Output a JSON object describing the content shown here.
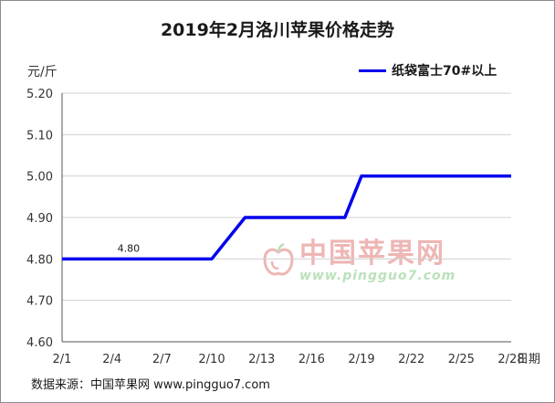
{
  "title": "2019年2月洛川苹果价格走势",
  "source": "数据来源：中国苹果网 www.pingguo7.com",
  "watermark": {
    "brand": "中国苹果网",
    "url": "www.pingguo7.com"
  },
  "colors": {
    "line": "#0000ee",
    "grid": "#d0d0d0",
    "axis": "#555555",
    "watermark_red": "#d9534f",
    "watermark_green": "#5cb85c"
  },
  "chart_data": {
    "type": "line",
    "title": "2019年2月洛川苹果价格走势",
    "ylabel": "元/斤",
    "xlabel": "日期",
    "ylim": [
      4.6,
      5.2
    ],
    "yticks": [
      "4.60",
      "4.70",
      "4.80",
      "4.90",
      "5.00",
      "5.10",
      "5.20"
    ],
    "xticks": [
      "2/1",
      "2/4",
      "2/7",
      "2/10",
      "2/13",
      "2/16",
      "2/19",
      "2/22",
      "2/25",
      "2/28"
    ],
    "grid": true,
    "legend_position": "top-right",
    "series": [
      {
        "name": "纸袋富士70#以上",
        "x": [
          1,
          10,
          12,
          18,
          19,
          28
        ],
        "values": [
          4.8,
          4.8,
          4.9,
          4.9,
          5.0,
          5.0
        ]
      }
    ],
    "annotations": [
      {
        "x": 5,
        "y": 4.8,
        "text": "4.80"
      }
    ]
  }
}
